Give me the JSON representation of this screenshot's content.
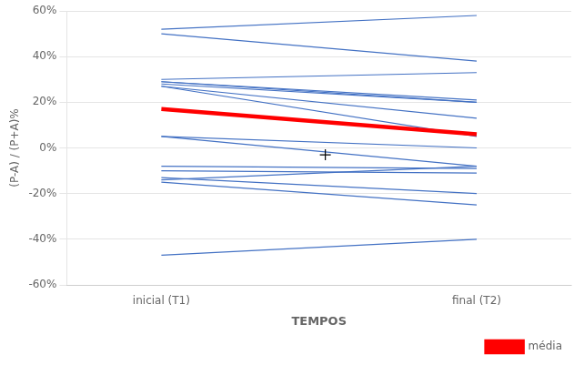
{
  "chart_data": {
    "type": "line",
    "xlabel": "TEMPOS",
    "ylabel": "(P-A) / (P+A)%",
    "x": [
      0,
      1
    ],
    "xlim": [
      -0.3,
      1.3
    ],
    "xticks": [
      {
        "value": 0,
        "label": "inicial (T1)"
      },
      {
        "value": 1,
        "label": "final (T2)"
      }
    ],
    "ylim": [
      -60,
      60
    ],
    "yticks": [
      {
        "value": -60,
        "label": "-60%"
      },
      {
        "value": -40,
        "label": "-40%"
      },
      {
        "value": -20,
        "label": "-20%"
      },
      {
        "value": 0,
        "label": "0%"
      },
      {
        "value": 20,
        "label": "20%"
      },
      {
        "value": 40,
        "label": "40%"
      },
      {
        "value": 60,
        "label": "60%"
      }
    ],
    "grid": "y",
    "legend": "lower right",
    "series": [
      {
        "color": "#4472C4",
        "values": [
          52,
          58
        ]
      },
      {
        "color": "#4472C4",
        "values": [
          50,
          38
        ]
      },
      {
        "color": "#4472C4",
        "values": [
          30,
          33
        ]
      },
      {
        "color": "#4472C4",
        "values": [
          29,
          21
        ]
      },
      {
        "color": "#4472C4",
        "values": [
          29,
          20
        ]
      },
      {
        "color": "#4472C4",
        "values": [
          28,
          20
        ]
      },
      {
        "color": "#4472C4",
        "values": [
          27,
          13
        ]
      },
      {
        "color": "#4472C4",
        "values": [
          27,
          5
        ]
      },
      {
        "color": "#4472C4",
        "values": [
          5,
          0
        ]
      },
      {
        "color": "#4472C4",
        "values": [
          5,
          -8
        ]
      },
      {
        "color": "#4472C4",
        "values": [
          -8,
          -9
        ]
      },
      {
        "color": "#4472C4",
        "values": [
          -10,
          -11
        ]
      },
      {
        "color": "#4472C4",
        "values": [
          -13,
          -20
        ]
      },
      {
        "color": "#4472C4",
        "values": [
          -14,
          -8
        ]
      },
      {
        "color": "#4472C4",
        "values": [
          -15,
          -25
        ]
      },
      {
        "color": "#4472C4",
        "values": [
          -47,
          -40
        ]
      },
      {
        "name": "média",
        "color": "#FF0000",
        "values": [
          17,
          6
        ]
      },
      {
        "type": "scatter",
        "marker": "cross",
        "color": "#000000",
        "x": [
          0.52
        ],
        "values": [
          -3
        ]
      }
    ]
  }
}
